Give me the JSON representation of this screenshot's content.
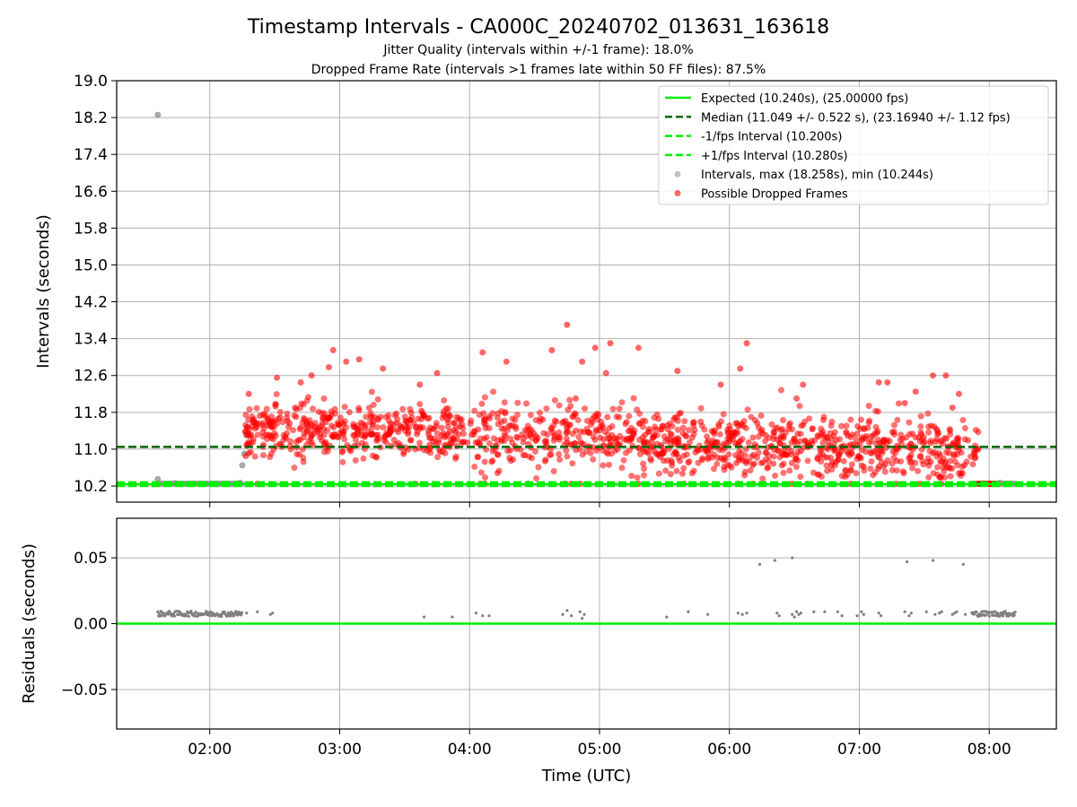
{
  "figure": {
    "title": "Timestamp Intervals - CA000C_20240702_013631_163618",
    "subtitle_1": "Jitter Quality (intervals within +/-1 frame): 18.0%",
    "subtitle_2": "Dropped Frame Rate (intervals >1 frames late within 50 FF files): 87.5%"
  },
  "chart_data": [
    {
      "type": "scatter",
      "panel": "intervals",
      "ylabel": "Intervals (seconds)",
      "xlabel": "",
      "ylim": [
        9.85,
        19.0
      ],
      "yticks": [
        "10.2",
        "11.0",
        "11.8",
        "12.6",
        "13.4",
        "14.2",
        "15.0",
        "15.8",
        "16.6",
        "17.4",
        "18.2",
        "19.0"
      ],
      "xlim": [
        "01:17",
        "08:31"
      ],
      "xticks": [
        "02:00",
        "03:00",
        "04:00",
        "05:00",
        "06:00",
        "07:00",
        "08:00"
      ],
      "grid": true,
      "legend_position": "top-right",
      "reference_lines": [
        {
          "name": "Expected (10.240s), (25.00000 fps)",
          "y": 10.24,
          "color": "#00ee00",
          "style": "solid"
        },
        {
          "name": "Median (11.049 +/- 0.522 s), (23.16940 +/- 1.12 fps)",
          "y": 11.049,
          "color": "#006400",
          "style": "dashed"
        },
        {
          "name": "-1/fps Interval (10.200s)",
          "y": 10.2,
          "color": "#00ee00",
          "style": "dashed"
        },
        {
          "name": "+1/fps Interval (10.280s)",
          "y": 10.28,
          "color": "#00ee00",
          "style": "dashed"
        }
      ],
      "series": [
        {
          "name": "Intervals, max (18.258s), min (10.244s)",
          "color": "#999999",
          "marker": "circle",
          "points": [
            {
              "x": "01:36",
              "y": 18.258
            },
            {
              "x": "01:36",
              "y": 10.35
            },
            {
              "x": "01:44",
              "y": 10.26
            },
            {
              "x": "02:14",
              "y": 10.27
            },
            {
              "x": "02:15",
              "y": 10.65
            },
            {
              "x": "02:16",
              "y": 10.9
            },
            {
              "x": "02:17",
              "y": 11.3
            },
            {
              "x": "08:05",
              "y": 10.27
            }
          ],
          "dense_runs": [
            {
              "x_start": "01:37",
              "x_end": "02:15",
              "y": 10.248
            },
            {
              "x_start": "07:52",
              "x_end": "08:12",
              "y": 10.25
            }
          ]
        },
        {
          "name": "Possible Dropped Frames",
          "color": "#ff0000",
          "marker": "circle",
          "cloud": {
            "x_start": "02:16",
            "x_end": "07:55",
            "center_y_start": 11.45,
            "center_y_end": 10.95,
            "spread": 0.33
          },
          "points": [
            {
              "x": "02:18",
              "y": 12.2
            },
            {
              "x": "02:31",
              "y": 12.55
            },
            {
              "x": "02:42",
              "y": 12.45
            },
            {
              "x": "02:47",
              "y": 12.6
            },
            {
              "x": "02:55",
              "y": 12.78
            },
            {
              "x": "02:57",
              "y": 13.15
            },
            {
              "x": "03:03",
              "y": 12.9
            },
            {
              "x": "03:09",
              "y": 12.95
            },
            {
              "x": "03:20",
              "y": 12.75
            },
            {
              "x": "03:37",
              "y": 12.4
            },
            {
              "x": "03:45",
              "y": 12.65
            },
            {
              "x": "04:06",
              "y": 13.1
            },
            {
              "x": "04:17",
              "y": 12.9
            },
            {
              "x": "04:38",
              "y": 13.15
            },
            {
              "x": "04:45",
              "y": 13.7
            },
            {
              "x": "04:49",
              "y": 12.1
            },
            {
              "x": "04:52",
              "y": 12.9
            },
            {
              "x": "04:58",
              "y": 13.2
            },
            {
              "x": "05:03",
              "y": 12.65
            },
            {
              "x": "05:05",
              "y": 13.3
            },
            {
              "x": "05:18",
              "y": 13.2
            },
            {
              "x": "05:36",
              "y": 12.7
            },
            {
              "x": "05:56",
              "y": 12.4
            },
            {
              "x": "06:05",
              "y": 12.75
            },
            {
              "x": "06:08",
              "y": 13.3
            },
            {
              "x": "06:31",
              "y": 12.1
            },
            {
              "x": "06:34",
              "y": 12.4
            },
            {
              "x": "07:09",
              "y": 12.45
            },
            {
              "x": "07:13",
              "y": 12.45
            },
            {
              "x": "07:21",
              "y": 12.0
            },
            {
              "x": "07:26",
              "y": 12.25
            },
            {
              "x": "07:34",
              "y": 12.6
            },
            {
              "x": "07:40",
              "y": 12.6
            },
            {
              "x": "07:43",
              "y": 11.9
            },
            {
              "x": "07:46",
              "y": 12.2
            }
          ],
          "baseline_points": [
            {
              "x": "02:22",
              "y": 10.25
            },
            {
              "x": "03:35",
              "y": 10.25
            },
            {
              "x": "04:05",
              "y": 10.25
            },
            {
              "x": "04:07",
              "y": 10.25
            },
            {
              "x": "04:27",
              "y": 10.25
            },
            {
              "x": "04:44",
              "y": 10.25
            },
            {
              "x": "04:47",
              "y": 10.25
            },
            {
              "x": "04:51",
              "y": 10.25
            },
            {
              "x": "05:18",
              "y": 10.25
            },
            {
              "x": "05:39",
              "y": 10.25
            },
            {
              "x": "06:04",
              "y": 10.25
            },
            {
              "x": "06:11",
              "y": 10.25
            },
            {
              "x": "06:29",
              "y": 10.25
            },
            {
              "x": "06:36",
              "y": 10.25
            },
            {
              "x": "06:56",
              "y": 10.25
            },
            {
              "x": "07:17",
              "y": 10.25
            },
            {
              "x": "07:28",
              "y": 10.25
            },
            {
              "x": "07:38",
              "y": 10.25
            }
          ],
          "dense_runs": [
            {
              "x_start": "07:55",
              "x_end": "08:03",
              "y": 10.25
            }
          ]
        }
      ]
    },
    {
      "type": "scatter",
      "panel": "residuals",
      "ylabel": "Residuals (seconds)",
      "xlabel": "Time (UTC)",
      "ylim": [
        -0.08,
        0.08
      ],
      "yticks": [
        "−0.05",
        "0.00",
        "0.05"
      ],
      "xlim": [
        "01:17",
        "08:31"
      ],
      "xticks": [
        "02:00",
        "03:00",
        "04:00",
        "05:00",
        "06:00",
        "07:00",
        "08:00"
      ],
      "grid": true,
      "reference_lines": [
        {
          "y": 0.0,
          "color": "#00ee00",
          "style": "solid"
        }
      ],
      "series": [
        {
          "color": "#808080",
          "marker": "dot",
          "dense_runs": [
            {
              "x_start": "01:36",
              "x_end": "02:15",
              "y": 0.0075
            },
            {
              "x_start": "07:52",
              "x_end": "08:12",
              "y": 0.0075
            }
          ],
          "points": [
            {
              "x": "02:17",
              "y": 0.008
            },
            {
              "x": "02:22",
              "y": 0.009
            },
            {
              "x": "02:28",
              "y": 0.007
            },
            {
              "x": "02:29",
              "y": 0.008
            },
            {
              "x": "03:39",
              "y": 0.005
            },
            {
              "x": "03:52",
              "y": 0.005
            },
            {
              "x": "04:03",
              "y": 0.008
            },
            {
              "x": "04:06",
              "y": 0.006
            },
            {
              "x": "04:09",
              "y": 0.006
            },
            {
              "x": "04:43",
              "y": 0.007
            },
            {
              "x": "04:45",
              "y": 0.01
            },
            {
              "x": "04:47",
              "y": 0.006
            },
            {
              "x": "04:51",
              "y": 0.009
            },
            {
              "x": "04:52",
              "y": 0.004
            },
            {
              "x": "04:53",
              "y": 0.007
            },
            {
              "x": "05:31",
              "y": 0.005
            },
            {
              "x": "05:41",
              "y": 0.009
            },
            {
              "x": "05:50",
              "y": 0.007
            },
            {
              "x": "06:04",
              "y": 0.008
            },
            {
              "x": "06:06",
              "y": 0.007
            },
            {
              "x": "06:08",
              "y": 0.008
            },
            {
              "x": "06:14",
              "y": 0.045
            },
            {
              "x": "06:21",
              "y": 0.048
            },
            {
              "x": "06:22",
              "y": 0.008
            },
            {
              "x": "06:23",
              "y": 0.006
            },
            {
              "x": "06:29",
              "y": 0.05
            },
            {
              "x": "06:29",
              "y": 0.007
            },
            {
              "x": "06:30",
              "y": 0.005
            },
            {
              "x": "06:31",
              "y": 0.009
            },
            {
              "x": "06:32",
              "y": 0.007
            },
            {
              "x": "06:33",
              "y": 0.008
            },
            {
              "x": "06:39",
              "y": 0.009
            },
            {
              "x": "06:44",
              "y": 0.009
            },
            {
              "x": "06:50",
              "y": 0.009
            },
            {
              "x": "06:52",
              "y": 0.006
            },
            {
              "x": "06:59",
              "y": 0.006
            },
            {
              "x": "07:01",
              "y": 0.009
            },
            {
              "x": "07:02",
              "y": 0.007
            },
            {
              "x": "07:09",
              "y": 0.008
            },
            {
              "x": "07:10",
              "y": 0.006
            },
            {
              "x": "07:21",
              "y": 0.009
            },
            {
              "x": "07:22",
              "y": 0.047
            },
            {
              "x": "07:23",
              "y": 0.006
            },
            {
              "x": "07:24",
              "y": 0.008
            },
            {
              "x": "07:31",
              "y": 0.009
            },
            {
              "x": "07:34",
              "y": 0.048
            },
            {
              "x": "07:35",
              "y": 0.007
            },
            {
              "x": "07:37",
              "y": 0.008
            },
            {
              "x": "07:38",
              "y": 0.009
            },
            {
              "x": "07:43",
              "y": 0.007
            },
            {
              "x": "07:44",
              "y": 0.008
            },
            {
              "x": "07:45",
              "y": 0.009
            },
            {
              "x": "07:48",
              "y": 0.045
            },
            {
              "x": "07:49",
              "y": 0.007
            }
          ]
        }
      ]
    }
  ]
}
